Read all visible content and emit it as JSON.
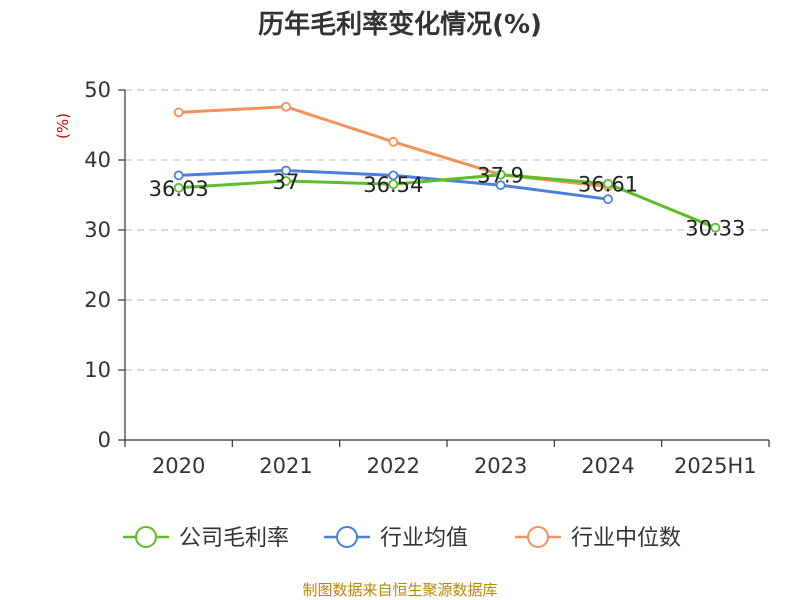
{
  "chart_data": {
    "type": "line",
    "title": "历年毛利率变化情况(%)",
    "ylabel": "(%)",
    "categories": [
      "2020",
      "2021",
      "2022",
      "2023",
      "2024",
      "2025H1"
    ],
    "ylim": [
      0,
      50
    ],
    "yticks": [
      0,
      10,
      20,
      30,
      40,
      50
    ],
    "grid": true,
    "legend_position": "bottom",
    "series": [
      {
        "name": "公司毛利率",
        "color": "#5cbf2a",
        "values": [
          36.03,
          37,
          36.54,
          37.9,
          36.61,
          30.33
        ],
        "labels": [
          "36.03",
          "37",
          "36.54",
          "37.9",
          "36.61",
          "30.33"
        ]
      },
      {
        "name": "行业均值",
        "color": "#4a7fdc",
        "values": [
          37.8,
          38.5,
          37.8,
          36.4,
          34.4,
          null
        ]
      },
      {
        "name": "行业中位数",
        "color": "#f5915a",
        "values": [
          46.8,
          47.6,
          42.6,
          37.9,
          36.2,
          null
        ]
      }
    ]
  },
  "footer": "制图数据来自恒生聚源数据库"
}
